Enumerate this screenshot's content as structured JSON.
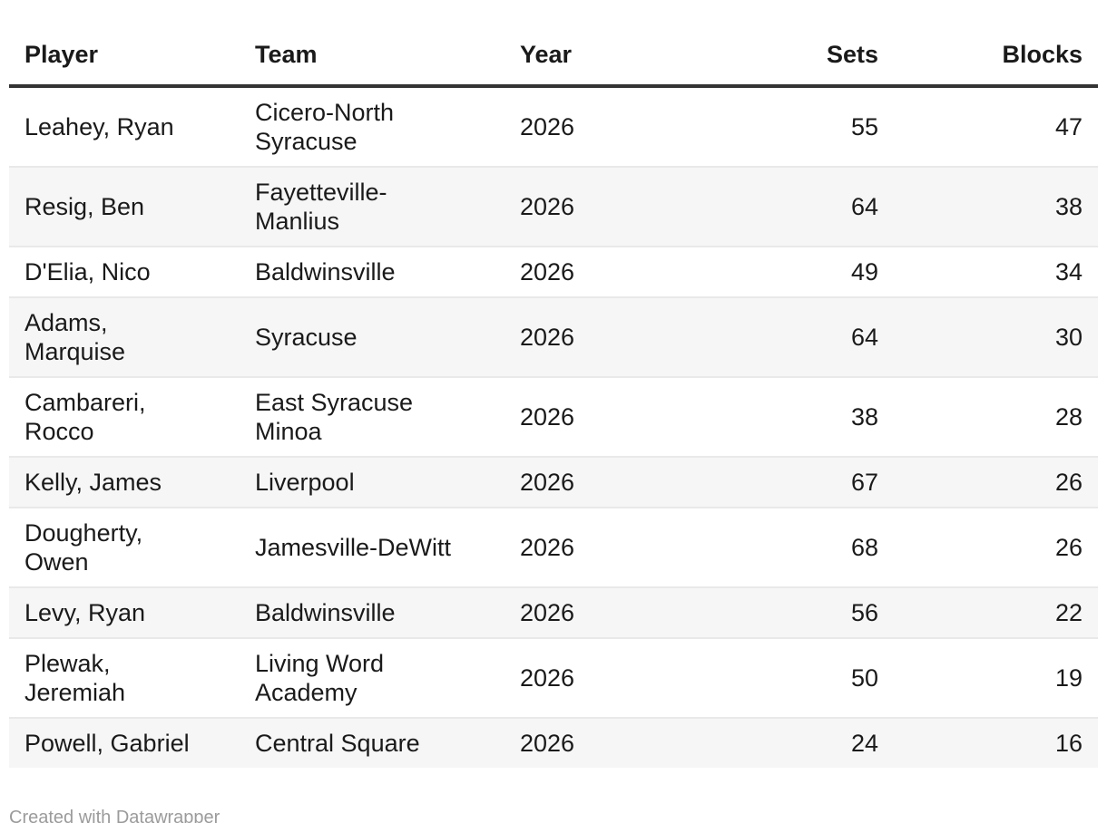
{
  "chart_data": {
    "type": "table",
    "columns": [
      {
        "label": "Player",
        "align": "left"
      },
      {
        "label": "Team",
        "align": "left"
      },
      {
        "label": "Year",
        "align": "left"
      },
      {
        "label": "Sets",
        "align": "right"
      },
      {
        "label": "Blocks",
        "align": "right"
      }
    ],
    "rows": [
      [
        "Leahey, Ryan",
        "Cicero-North\nSyracuse",
        "2026",
        "55",
        "47"
      ],
      [
        "Resig, Ben",
        "Fayetteville-\nManlius",
        "2026",
        "64",
        "38"
      ],
      [
        "D'Elia, Nico",
        "Baldwinsville",
        "2026",
        "49",
        "34"
      ],
      [
        "Adams,\nMarquise",
        "Syracuse",
        "2026",
        "64",
        "30"
      ],
      [
        "Cambareri,\nRocco",
        "East Syracuse\nMinoa",
        "2026",
        "38",
        "28"
      ],
      [
        "Kelly, James",
        "Liverpool",
        "2026",
        "67",
        "26"
      ],
      [
        "Dougherty,\nOwen",
        "Jamesville-DeWitt",
        "2026",
        "68",
        "26"
      ],
      [
        "Levy, Ryan",
        "Baldwinsville",
        "2026",
        "56",
        "22"
      ],
      [
        "Plewak,\nJeremiah",
        "Living Word\nAcademy",
        "2026",
        "50",
        "19"
      ],
      [
        "Powell, Gabriel",
        "Central Square",
        "2026",
        "24",
        "16"
      ]
    ],
    "title": "",
    "layout": {
      "zebra_striping": true,
      "first_body_row_background": "white",
      "numeric_columns_right_aligned": [
        "Sets",
        "Blocks"
      ]
    }
  },
  "footer": {
    "credit": "Created with Datawrapper"
  },
  "colors": {
    "text": "#1a1a1a",
    "header_border": "#333333",
    "stripe": "#f6f6f6",
    "row_divider": "#e9e9e9",
    "credit": "#9b9b9b",
    "background": "#ffffff"
  }
}
